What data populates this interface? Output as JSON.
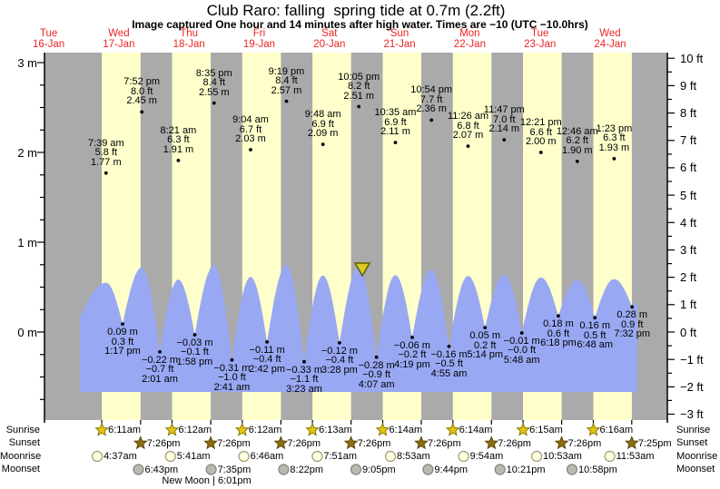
{
  "title": "Club Raro: falling  spring tide at 0.7m (2.2ft)",
  "subtitle": "Image captured One hour and 14 minutes after high water. Times are −10 (UTC −10.0hrs)",
  "colors": {
    "day_band": "#ffffcc",
    "night_band": "#aaaaaa",
    "water": "#99a8f3",
    "day_label_red": "#ee2222",
    "axis_black": "#000000",
    "marker_fill": "#d8ca28",
    "marker_stroke": "#5f5f00",
    "sunrise_star_fill": "#e6c511",
    "sunrise_star_stroke": "#8a7a00",
    "sunset_star_fill": "#8f6c14",
    "sunset_star_stroke": "#5f4a08",
    "moonrise_fill": "#ffffe4",
    "moonrise_stroke": "#a09a70",
    "moonset_fill": "#b9b9ad",
    "moonset_stroke": "#85857a"
  },
  "days": [
    {
      "name": "Tue",
      "date": "16-Jan"
    },
    {
      "name": "Wed",
      "date": "17-Jan"
    },
    {
      "name": "Thu",
      "date": "18-Jan"
    },
    {
      "name": "Fri",
      "date": "19-Jan"
    },
    {
      "name": "Sat",
      "date": "20-Jan"
    },
    {
      "name": "Sun",
      "date": "21-Jan"
    },
    {
      "name": "Mon",
      "date": "22-Jan"
    },
    {
      "name": "Tue",
      "date": "23-Jan"
    },
    {
      "name": "Wed",
      "date": "24-Jan"
    }
  ],
  "chart_data": {
    "type": "area",
    "title": "Club Raro: falling  spring tide at 0.7m (2.2ft)",
    "ylabel_left": "m",
    "ylabel_right": "ft",
    "ylim_left_m": [
      -1.0,
      3.1
    ],
    "ylim_right_ft": [
      -3,
      10
    ],
    "left_ticks": [
      {
        "m": 3,
        "label": "3 m"
      },
      {
        "m": 2,
        "label": "2 m"
      },
      {
        "m": 1,
        "label": "1 m"
      },
      {
        "m": 0,
        "label": "0 m"
      }
    ],
    "right_ticks": [
      {
        "ft": 10,
        "label": "10 ft"
      },
      {
        "ft": 9,
        "label": "9 ft"
      },
      {
        "ft": 8,
        "label": "8 ft"
      },
      {
        "ft": 7,
        "label": "7 ft"
      },
      {
        "ft": 6,
        "label": "6 ft"
      },
      {
        "ft": 5,
        "label": "5 ft"
      },
      {
        "ft": 4,
        "label": "4 ft"
      },
      {
        "ft": 3,
        "label": "3 ft"
      },
      {
        "ft": 2,
        "label": "2 ft"
      },
      {
        "ft": 1,
        "label": "1 ft"
      },
      {
        "ft": 0,
        "label": "0 ft"
      },
      {
        "ft": -1,
        "label": "−1 ft"
      },
      {
        "ft": -2,
        "label": "−2 ft"
      },
      {
        "ft": -3,
        "label": "−3 ft"
      }
    ],
    "tides": [
      {
        "day": 0,
        "time": "7:39 am",
        "type": "high",
        "m_val": 1.77,
        "m": "1.77 m",
        "ft": "5.8 ft"
      },
      {
        "day": 0,
        "time": "1:17 pm",
        "type": "low",
        "m_val": 0.09,
        "m": "0.09 m",
        "ft": "0.3 ft"
      },
      {
        "day": 0,
        "time": "7:52 pm",
        "type": "high",
        "m_val": 2.45,
        "m": "2.45 m",
        "ft": "8.0 ft"
      },
      {
        "day": 1,
        "time": "2:01 am",
        "type": "low",
        "m_val": -0.22,
        "m": "−0.22 m",
        "ft": "−0.7 ft"
      },
      {
        "day": 1,
        "time": "8:21 am",
        "type": "high",
        "m_val": 1.91,
        "m": "1.91 m",
        "ft": "6.3 ft"
      },
      {
        "day": 1,
        "time": "1:58 pm",
        "type": "low",
        "m_val": -0.03,
        "m": "−0.03 m",
        "ft": "−0.1 ft"
      },
      {
        "day": 1,
        "time": "8:35 pm",
        "type": "high",
        "m_val": 2.55,
        "m": "2.55 m",
        "ft": "8.4 ft"
      },
      {
        "day": 2,
        "time": "2:41 am",
        "type": "low",
        "m_val": -0.31,
        "m": "−0.31 m",
        "ft": "−1.0 ft"
      },
      {
        "day": 2,
        "time": "9:04 am",
        "type": "high",
        "m_val": 2.03,
        "m": "2.03 m",
        "ft": "6.7 ft"
      },
      {
        "day": 2,
        "time": "2:42 pm",
        "type": "low",
        "m_val": -0.11,
        "m": "−0.11 m",
        "ft": "−0.4 ft"
      },
      {
        "day": 2,
        "time": "9:19 pm",
        "type": "high",
        "m_val": 2.57,
        "m": "2.57 m",
        "ft": "8.4 ft"
      },
      {
        "day": 3,
        "time": "3:23 am",
        "type": "low",
        "m_val": -0.33,
        "m": "−0.33 m",
        "ft": "−1.1 ft"
      },
      {
        "day": 3,
        "time": "9:48 am",
        "type": "high",
        "m_val": 2.09,
        "m": "2.09 m",
        "ft": "6.9 ft"
      },
      {
        "day": 3,
        "time": "3:28 pm",
        "type": "low",
        "m_val": -0.12,
        "m": "−0.12 m",
        "ft": "−0.4 ft"
      },
      {
        "day": 3,
        "time": "10:05 pm",
        "type": "high",
        "m_val": 2.51,
        "m": "2.51 m",
        "ft": "8.2 ft"
      },
      {
        "day": 4,
        "time": "4:07 am",
        "type": "low",
        "m_val": -0.28,
        "m": "−0.28 m",
        "ft": "−0.9 ft"
      },
      {
        "day": 4,
        "time": "10:35 am",
        "type": "high",
        "m_val": 2.11,
        "m": "2.11 m",
        "ft": "6.9 ft"
      },
      {
        "day": 4,
        "time": "4:19 pm",
        "type": "low",
        "m_val": -0.06,
        "m": "−0.06 m",
        "ft": "−0.2 ft"
      },
      {
        "day": 4,
        "time": "10:54 pm",
        "type": "high",
        "m_val": 2.36,
        "m": "2.36 m",
        "ft": "7.7 ft"
      },
      {
        "day": 5,
        "time": "4:55 am",
        "type": "low",
        "m_val": -0.16,
        "m": "−0.16 m",
        "ft": "−0.5 ft"
      },
      {
        "day": 5,
        "time": "11:26 am",
        "type": "high",
        "m_val": 2.07,
        "m": "2.07 m",
        "ft": "6.8 ft"
      },
      {
        "day": 5,
        "time": "5:14 pm",
        "type": "low",
        "m_val": 0.05,
        "m": "0.05 m",
        "ft": "0.2 ft"
      },
      {
        "day": 5,
        "time": "11:47 pm",
        "type": "high",
        "m_val": 2.14,
        "m": "2.14 m",
        "ft": "7.0 ft"
      },
      {
        "day": 6,
        "time": "5:48 am",
        "type": "low",
        "m_val": -0.01,
        "m": "−0.01 m",
        "ft": "−0.0 ft"
      },
      {
        "day": 6,
        "time": "12:21 pm",
        "type": "high",
        "m_val": 2.0,
        "m": "2.00 m",
        "ft": "6.6 ft"
      },
      {
        "day": 6,
        "time": "6:18 pm",
        "type": "low",
        "m_val": 0.18,
        "m": "0.18 m",
        "ft": "0.6 ft"
      },
      {
        "day": 7,
        "time": "12:46 am",
        "type": "high",
        "m_val": 1.9,
        "m": "1.90 m",
        "ft": "6.2 ft"
      },
      {
        "day": 7,
        "time": "6:48 am",
        "type": "low",
        "m_val": 0.16,
        "m": "0.16 m",
        "ft": "0.5 ft"
      },
      {
        "day": 7,
        "time": "1:23 pm",
        "type": "high",
        "m_val": 1.93,
        "m": "1.93 m",
        "ft": "6.3 ft"
      },
      {
        "day": 7,
        "time": "7:32 pm",
        "type": "low",
        "m_val": 0.28,
        "m": "0.28 m",
        "ft": "0.9 ft"
      }
    ],
    "current_marker": {
      "state": "falling",
      "height_m": 0.7,
      "height_ft": 2.2,
      "day": 3,
      "hour": 23.3
    }
  },
  "astro": {
    "rows": [
      {
        "label": "Sunrise",
        "icon": "sunrise-star",
        "events": [
          {
            "day": 0,
            "time": "6:11am"
          },
          {
            "day": 1,
            "time": "6:12am"
          },
          {
            "day": 2,
            "time": "6:12am"
          },
          {
            "day": 3,
            "time": "6:13am"
          },
          {
            "day": 4,
            "time": "6:14am"
          },
          {
            "day": 5,
            "time": "6:14am"
          },
          {
            "day": 6,
            "time": "6:15am"
          },
          {
            "day": 7,
            "time": "6:16am"
          }
        ]
      },
      {
        "label": "Sunset",
        "icon": "sunset-star",
        "events": [
          {
            "day": 0,
            "time": "7:26pm"
          },
          {
            "day": 1,
            "time": "7:26pm"
          },
          {
            "day": 2,
            "time": "7:26pm"
          },
          {
            "day": 3,
            "time": "7:26pm"
          },
          {
            "day": 4,
            "time": "7:26pm"
          },
          {
            "day": 5,
            "time": "7:26pm"
          },
          {
            "day": 6,
            "time": "7:26pm"
          },
          {
            "day": 7,
            "time": "7:25pm"
          }
        ]
      },
      {
        "label": "Moonrise",
        "icon": "moonrise-circle",
        "events": [
          {
            "day": 0,
            "time": "4:37am"
          },
          {
            "day": 1,
            "time": "5:41am"
          },
          {
            "day": 2,
            "time": "6:46am"
          },
          {
            "day": 3,
            "time": "7:51am"
          },
          {
            "day": 4,
            "time": "8:53am"
          },
          {
            "day": 5,
            "time": "9:54am"
          },
          {
            "day": 6,
            "time": "10:53am"
          },
          {
            "day": 7,
            "time": "11:53am"
          }
        ]
      },
      {
        "label": "Moonset",
        "icon": "moonset-circle",
        "events": [
          {
            "day": 0,
            "time": "6:43pm"
          },
          {
            "day": 1,
            "time": "7:35pm"
          },
          {
            "day": 2,
            "time": "8:22pm"
          },
          {
            "day": 3,
            "time": "9:05pm"
          },
          {
            "day": 4,
            "time": "9:44pm"
          },
          {
            "day": 5,
            "time": "10:21pm"
          },
          {
            "day": 6,
            "time": "10:58pm"
          }
        ]
      }
    ],
    "new_moon": {
      "label": "New Moon",
      "time": "6:01pm",
      "text": "New Moon | 6:01pm",
      "day": 1,
      "hour": 18.02
    }
  }
}
